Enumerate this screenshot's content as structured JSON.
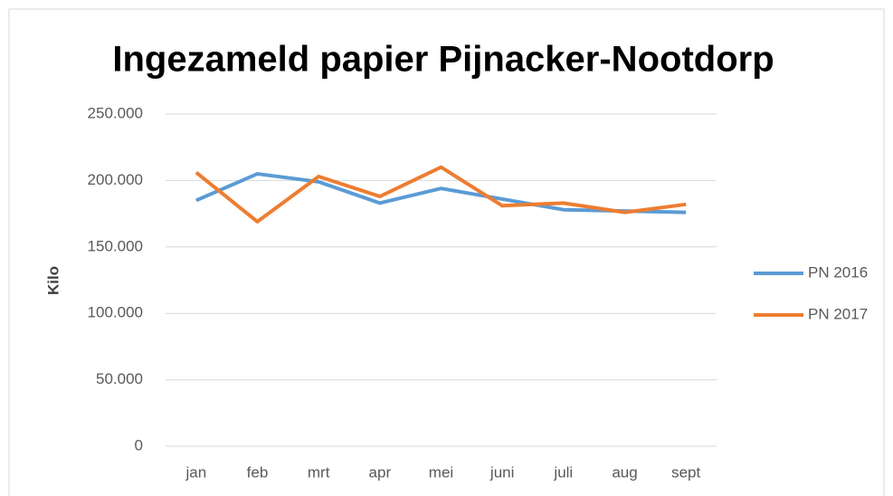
{
  "chart_data": {
    "type": "line",
    "title": "Ingezameld papier Pijnacker-Nootdorp",
    "y_label": "Kilo",
    "categories": [
      "jan",
      "feb",
      "mrt",
      "apr",
      "mei",
      "juni",
      "juli",
      "aug",
      "sept"
    ],
    "series": [
      {
        "name": "PN 2016",
        "color": "#5b9bd5",
        "values": [
          185000,
          205000,
          199000,
          183000,
          194000,
          186000,
          178000,
          177000,
          176000
        ]
      },
      {
        "name": "PN 2017",
        "color": "#ed7d31",
        "values": [
          206000,
          169000,
          203000,
          188000,
          210000,
          181000,
          183000,
          176000,
          182000
        ]
      }
    ],
    "ylim": [
      0,
      250000
    ],
    "yticks": [
      0,
      {
        "value": 50000,
        "label": "50.000"
      },
      {
        "value": 100000,
        "label": "100.000"
      },
      {
        "value": 150000,
        "label": "150.000"
      },
      {
        "value": 200000,
        "label": "200.000"
      },
      {
        "value": 250000,
        "label": "250.000"
      }
    ],
    "grid": true,
    "legend": "right"
  }
}
